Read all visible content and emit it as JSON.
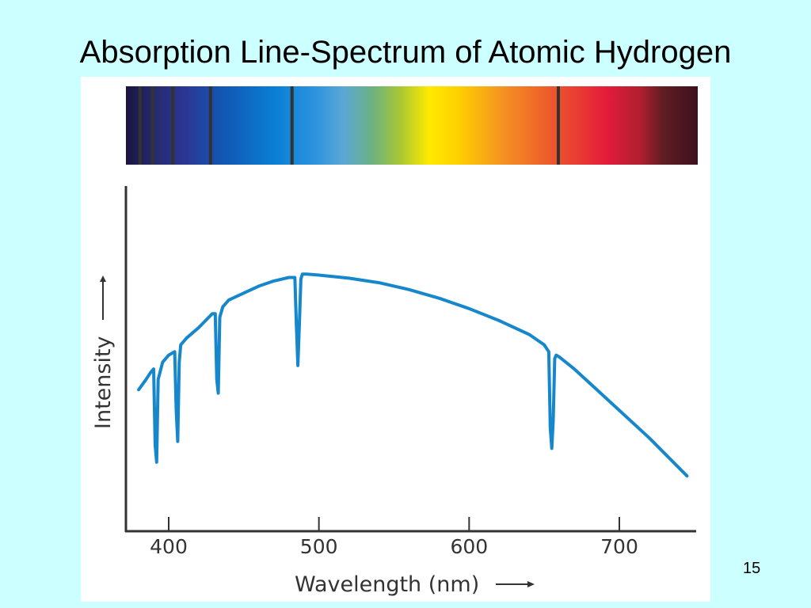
{
  "slide": {
    "title": "Absorption Line-Spectrum of Atomic Hydrogen",
    "page_number": "15"
  },
  "colors": {
    "background": "#ccffff",
    "curve": "#1787cc",
    "axis": "#333333",
    "absorption_line": "#333333"
  },
  "chart_data": {
    "type": "line",
    "title": "",
    "xlabel": "Wavelength (nm)",
    "ylabel": "Intensity",
    "xlim": [
      370,
      750
    ],
    "ylim": [
      0,
      1
    ],
    "x_ticks": [
      400,
      500,
      600,
      700
    ],
    "x_tick_labels": [
      "400",
      "500",
      "600",
      "700"
    ],
    "y_ticks": [],
    "grid": false,
    "legend": "none",
    "series": [
      {
        "x": [
          380,
          385,
          388,
          390,
          391,
          392,
          393,
          396,
          400,
          404,
          405,
          406,
          407,
          408,
          412,
          420,
          429,
          431,
          432,
          433,
          434,
          436,
          440,
          450,
          460,
          470,
          480,
          484,
          485,
          486,
          487,
          488,
          489,
          492,
          500,
          520,
          540,
          560,
          580,
          600,
          620,
          640,
          650,
          653,
          654,
          655,
          656,
          657,
          658,
          660,
          670,
          680,
          700,
          720,
          745
        ],
        "y": [
          0.41,
          0.44,
          0.46,
          0.47,
          0.25,
          0.2,
          0.44,
          0.49,
          0.51,
          0.52,
          0.35,
          0.26,
          0.49,
          0.54,
          0.56,
          0.59,
          0.63,
          0.63,
          0.44,
          0.4,
          0.62,
          0.65,
          0.67,
          0.69,
          0.71,
          0.725,
          0.735,
          0.735,
          0.6,
          0.48,
          0.6,
          0.73,
          0.745,
          0.745,
          0.742,
          0.733,
          0.72,
          0.7,
          0.675,
          0.645,
          0.61,
          0.57,
          0.54,
          0.52,
          0.3,
          0.24,
          0.32,
          0.5,
          0.51,
          0.505,
          0.47,
          0.43,
          0.35,
          0.27,
          0.16
        ]
      }
    ],
    "absorption_lines_nm": [
      389,
      397,
      410,
      434,
      486,
      656
    ]
  }
}
